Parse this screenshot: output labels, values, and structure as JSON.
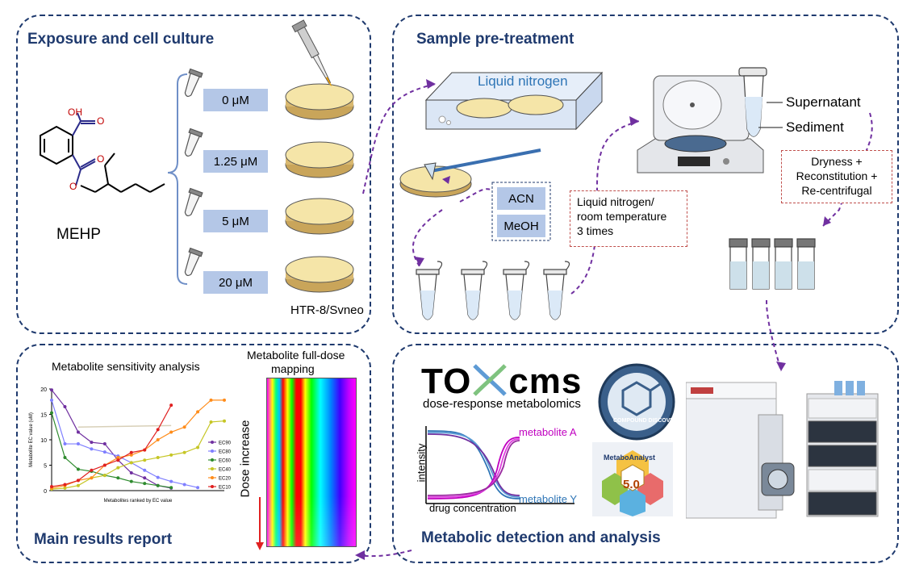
{
  "panels": {
    "exposure": {
      "title": "Exposure and cell culture"
    },
    "pretreat": {
      "title": "Sample pre-treatment"
    },
    "results": {
      "title": "Main results report"
    },
    "detection": {
      "title": "Metabolic detection and analysis"
    }
  },
  "exposure": {
    "compound_label": "MEHP",
    "oh_label": "OH",
    "o1": "O",
    "o2": "O",
    "o3": "O",
    "concentrations": [
      "0 μM",
      "1.25 μM",
      "5 μM",
      "20 μM"
    ],
    "cell_line": "HTR-8/Svneo"
  },
  "pretreat": {
    "liquid_nitrogen": "Liquid nitrogen",
    "solvents": [
      "ACN",
      "MeOH"
    ],
    "freeze_thaw": [
      "Liquid nitrogen/",
      "room temperature",
      "3 times"
    ],
    "supernatant": "Supernatant",
    "sediment": "Sediment",
    "post_steps": [
      "Dryness +",
      "Reconstitution +",
      "Re-centrifugal"
    ]
  },
  "results": {
    "sensitivity_title": "Metabolite sensitivity analysis",
    "heatmap_title": [
      "Metabolite full-dose",
      "mapping"
    ],
    "dose_label": "Dose increase"
  },
  "detection": {
    "brand_a": "TO",
    "brand_b": "cms",
    "brand_sub": "dose-response metabolomics",
    "metabolite_a": "metabolite A",
    "metabolite_y": "metabolite Y",
    "x_label": "drug concentration",
    "y_label": "intensity",
    "badge_text": "COMPOUND DISCOVERER",
    "ma_title": "MetaboAnalyst",
    "ma_version": "5.0"
  },
  "colors": {
    "panel_border": "#1f3a6e",
    "conc_fill": "#b4c7e7",
    "arrow": "#7030a0",
    "note_border": "#c0504d",
    "curve_a": "#c000c0",
    "curve_y": "#2e75b6"
  },
  "chart_data": {
    "type": "line",
    "title": "Metabolite sensitivity analysis",
    "xlabel": "Metabolites ranked by EC value",
    "ylabel": "Metabolite EC value (uM)",
    "ylim": [
      0,
      20
    ],
    "yticks": [
      0,
      5,
      10,
      15,
      20
    ],
    "x": [
      1,
      2,
      3,
      4,
      5,
      6,
      7,
      8,
      9,
      10,
      11,
      12,
      13,
      14
    ],
    "series": [
      {
        "name": "EC90",
        "color": "#7030a0",
        "values": [
          19.8,
          16.5,
          11.5,
          9.5,
          9.2,
          6.0,
          3.5,
          2.5,
          1.0,
          0.5,
          null,
          null,
          null,
          null
        ]
      },
      {
        "name": "EC80",
        "color": "#7f7fff",
        "values": [
          17.8,
          9.2,
          9.2,
          8.2,
          7.6,
          6.8,
          5.5,
          4.0,
          2.6,
          1.8,
          1.2,
          0.6,
          null,
          null
        ]
      },
      {
        "name": "EC60",
        "color": "#2e8b2e",
        "values": [
          15.3,
          6.5,
          4.2,
          3.8,
          3.0,
          2.5,
          1.8,
          1.4,
          1.0,
          0.6,
          null,
          null,
          null,
          null
        ]
      },
      {
        "name": "EC40",
        "color": "#c6c625",
        "values": [
          0.3,
          0.5,
          1.0,
          2.5,
          3.0,
          4.5,
          5.5,
          6.0,
          6.5,
          7.0,
          7.5,
          8.5,
          13.5,
          13.7
        ]
      },
      {
        "name": "EC20",
        "color": "#ff8c1a",
        "values": [
          0.5,
          1.0,
          2.0,
          2.5,
          5.0,
          6.5,
          7.0,
          8.0,
          10.0,
          11.5,
          12.5,
          15.5,
          17.8,
          17.8
        ]
      },
      {
        "name": "EC10",
        "color": "#e02020",
        "values": [
          0.8,
          1.2,
          2.0,
          4.0,
          5.0,
          6.0,
          7.5,
          8.0,
          12.0,
          16.8,
          null,
          null,
          null,
          null
        ]
      }
    ],
    "legend_labels": [
      "EC90",
      "EC80",
      "EC60",
      "EC40",
      "EC20",
      "EC10"
    ]
  }
}
